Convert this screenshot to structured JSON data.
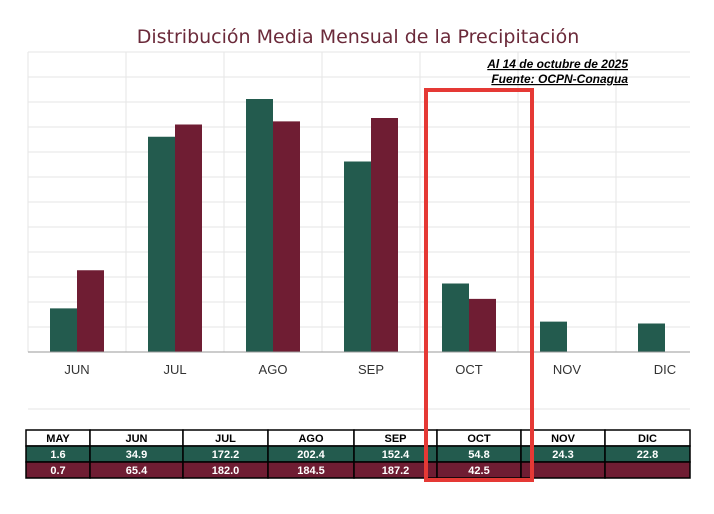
{
  "chart_data": {
    "type": "bar",
    "title": "Distribución Media Mensual de la Precipitación",
    "annotations": [
      "Al 14 de octubre de 2025",
      "Fuente: OCPN-Conagua"
    ],
    "chart_categories": [
      "JUN",
      "JUL",
      "AGO",
      "SEP",
      "OCT",
      "NOV",
      "DIC"
    ],
    "chart_series": [
      {
        "color": "#235b4e",
        "values": [
          34.9,
          172.2,
          202.4,
          152.4,
          54.8,
          24.3,
          22.8
        ]
      },
      {
        "color": "#6f1d33",
        "values": [
          65.4,
          182.0,
          184.5,
          187.2,
          42.5,
          null,
          null
        ]
      }
    ],
    "ylim": [
      0,
      240
    ],
    "grid": true,
    "legend": "none",
    "highlight": {
      "category": "OCT",
      "color": "#e53935"
    },
    "table": {
      "headers": [
        "MAY",
        "JUN",
        "JUL",
        "AGO",
        "SEP",
        "OCT",
        "NOV",
        "DIC"
      ],
      "rows": [
        {
          "color": "#235b4e",
          "values": [
            "1.6",
            "34.9",
            "172.2",
            "202.4",
            "152.4",
            "54.8",
            "24.3",
            "22.8"
          ]
        },
        {
          "color": "#6f1d33",
          "values": [
            "0.7",
            "65.4",
            "182.0",
            "184.5",
            "187.2",
            "42.5",
            "",
            ""
          ]
        }
      ]
    }
  }
}
